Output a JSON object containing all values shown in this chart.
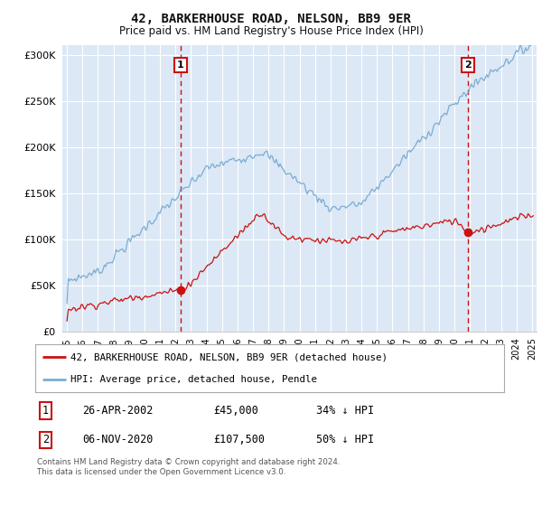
{
  "title": "42, BARKERHOUSE ROAD, NELSON, BB9 9ER",
  "subtitle": "Price paid vs. HM Land Registry's House Price Index (HPI)",
  "hpi_label": "HPI: Average price, detached house, Pendle",
  "price_label": "42, BARKERHOUSE ROAD, NELSON, BB9 9ER (detached house)",
  "purchase1_date": "26-APR-2002",
  "purchase1_price": 45000,
  "purchase1_note": "34% ↓ HPI",
  "purchase2_date": "06-NOV-2020",
  "purchase2_price": 107500,
  "purchase2_note": "50% ↓ HPI",
  "purchase1_x": 2002.32,
  "purchase2_x": 2020.85,
  "ylim": [
    0,
    310000
  ],
  "xlim": [
    1994.7,
    2025.3
  ],
  "ylabel_ticks": [
    0,
    50000,
    100000,
    150000,
    200000,
    250000,
    300000
  ],
  "xlabel_ticks": [
    1995,
    1996,
    1997,
    1998,
    1999,
    2000,
    2001,
    2002,
    2003,
    2004,
    2005,
    2006,
    2007,
    2008,
    2009,
    2010,
    2011,
    2012,
    2013,
    2014,
    2015,
    2016,
    2017,
    2018,
    2019,
    2020,
    2021,
    2022,
    2023,
    2024,
    2025
  ],
  "hpi_color": "#7aadd4",
  "price_color": "#cc1111",
  "vline_color": "#cc1111",
  "bg_color": "#dce8f5",
  "plot_bg": "#dce8f5",
  "footnote": "Contains HM Land Registry data © Crown copyright and database right 2024.\nThis data is licensed under the Open Government Licence v3.0."
}
